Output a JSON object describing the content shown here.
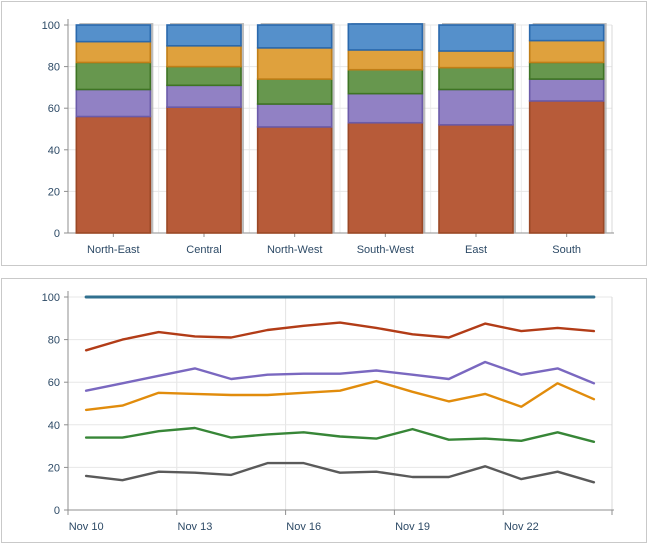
{
  "page": {
    "background": "#ffffff",
    "axis_text_color": "#2d4a66"
  },
  "chart_data": [
    {
      "id": "region-stacked-bar",
      "type": "bar",
      "stacked": true,
      "title": "",
      "categories": [
        "North-East",
        "Central",
        "North-West",
        "South-West",
        "East",
        "South"
      ],
      "series": [
        {
          "name": "brick-segment",
          "fill": "#b75b39",
          "stroke": "#9a4826",
          "values": [
            56,
            60.5,
            51,
            53,
            52,
            63.5
          ]
        },
        {
          "name": "purple-segment",
          "fill": "#9181c4",
          "stroke": "#6b5ba9",
          "values": [
            13,
            10.5,
            11,
            14,
            17,
            10.5
          ]
        },
        {
          "name": "green-segment",
          "fill": "#67974e",
          "stroke": "#3e7424",
          "values": [
            13,
            9,
            12,
            11.5,
            10.5,
            8
          ]
        },
        {
          "name": "orange-segment",
          "fill": "#dfa13d",
          "stroke": "#c07e17",
          "values": [
            10,
            10,
            15,
            9.5,
            8,
            10.5
          ]
        },
        {
          "name": "blue-segment",
          "fill": "#5590cb",
          "stroke": "#2a69ad",
          "values": [
            8,
            10,
            11,
            12.5,
            12.5,
            7.5
          ]
        }
      ],
      "y_ticks": [
        0,
        20,
        40,
        60,
        80,
        100
      ],
      "ylim": [
        0,
        100
      ],
      "grid": true,
      "legend": "none"
    },
    {
      "id": "daily-line",
      "type": "line",
      "title": "",
      "num_points": 15,
      "points_per_gridline": 3,
      "x_tick_labels": [
        "Nov 10",
        "Nov 13",
        "Nov 16",
        "Nov 19",
        "Nov 22"
      ],
      "label_indices": [
        0,
        3,
        6,
        9,
        12
      ],
      "series": [
        {
          "name": "blue-line",
          "color": "#31708f",
          "width": 3,
          "values": [
            100,
            100,
            100,
            100,
            100,
            100,
            100,
            100,
            100,
            100,
            100,
            100,
            100,
            100,
            100
          ]
        },
        {
          "name": "red-line",
          "color": "#b23c17",
          "width": 2.4,
          "values": [
            75,
            80,
            83.5,
            81.5,
            81,
            84.5,
            86.5,
            88,
            85.5,
            82.5,
            81,
            87.5,
            84,
            85.5,
            84
          ]
        },
        {
          "name": "purple-line",
          "color": "#7a68c0",
          "width": 2.4,
          "values": [
            56,
            59.5,
            63,
            66.5,
            61.5,
            63.5,
            64,
            64,
            65.5,
            63.5,
            61.5,
            69.5,
            63.5,
            66.5,
            59.5
          ]
        },
        {
          "name": "orange-line",
          "color": "#e18c0c",
          "width": 2.4,
          "values": [
            47,
            49,
            55,
            54.5,
            54,
            54,
            55,
            56,
            60.5,
            55.5,
            51,
            54.5,
            48.5,
            59.5,
            52
          ]
        },
        {
          "name": "green-line",
          "color": "#378637",
          "width": 2.4,
          "values": [
            34,
            34,
            37,
            38.5,
            34,
            35.5,
            36.5,
            34.5,
            33.5,
            38,
            33,
            33.5,
            32.5,
            36.5,
            32
          ]
        },
        {
          "name": "gray-line",
          "color": "#5a5a5a",
          "width": 2.4,
          "values": [
            16,
            14,
            18,
            17.5,
            16.5,
            22,
            22,
            17.5,
            18,
            15.5,
            15.5,
            20.5,
            14.5,
            18,
            13
          ]
        }
      ],
      "y_ticks": [
        0,
        20,
        40,
        60,
        80,
        100
      ],
      "ylim": [
        0,
        100
      ],
      "grid": true,
      "legend": "none"
    }
  ]
}
